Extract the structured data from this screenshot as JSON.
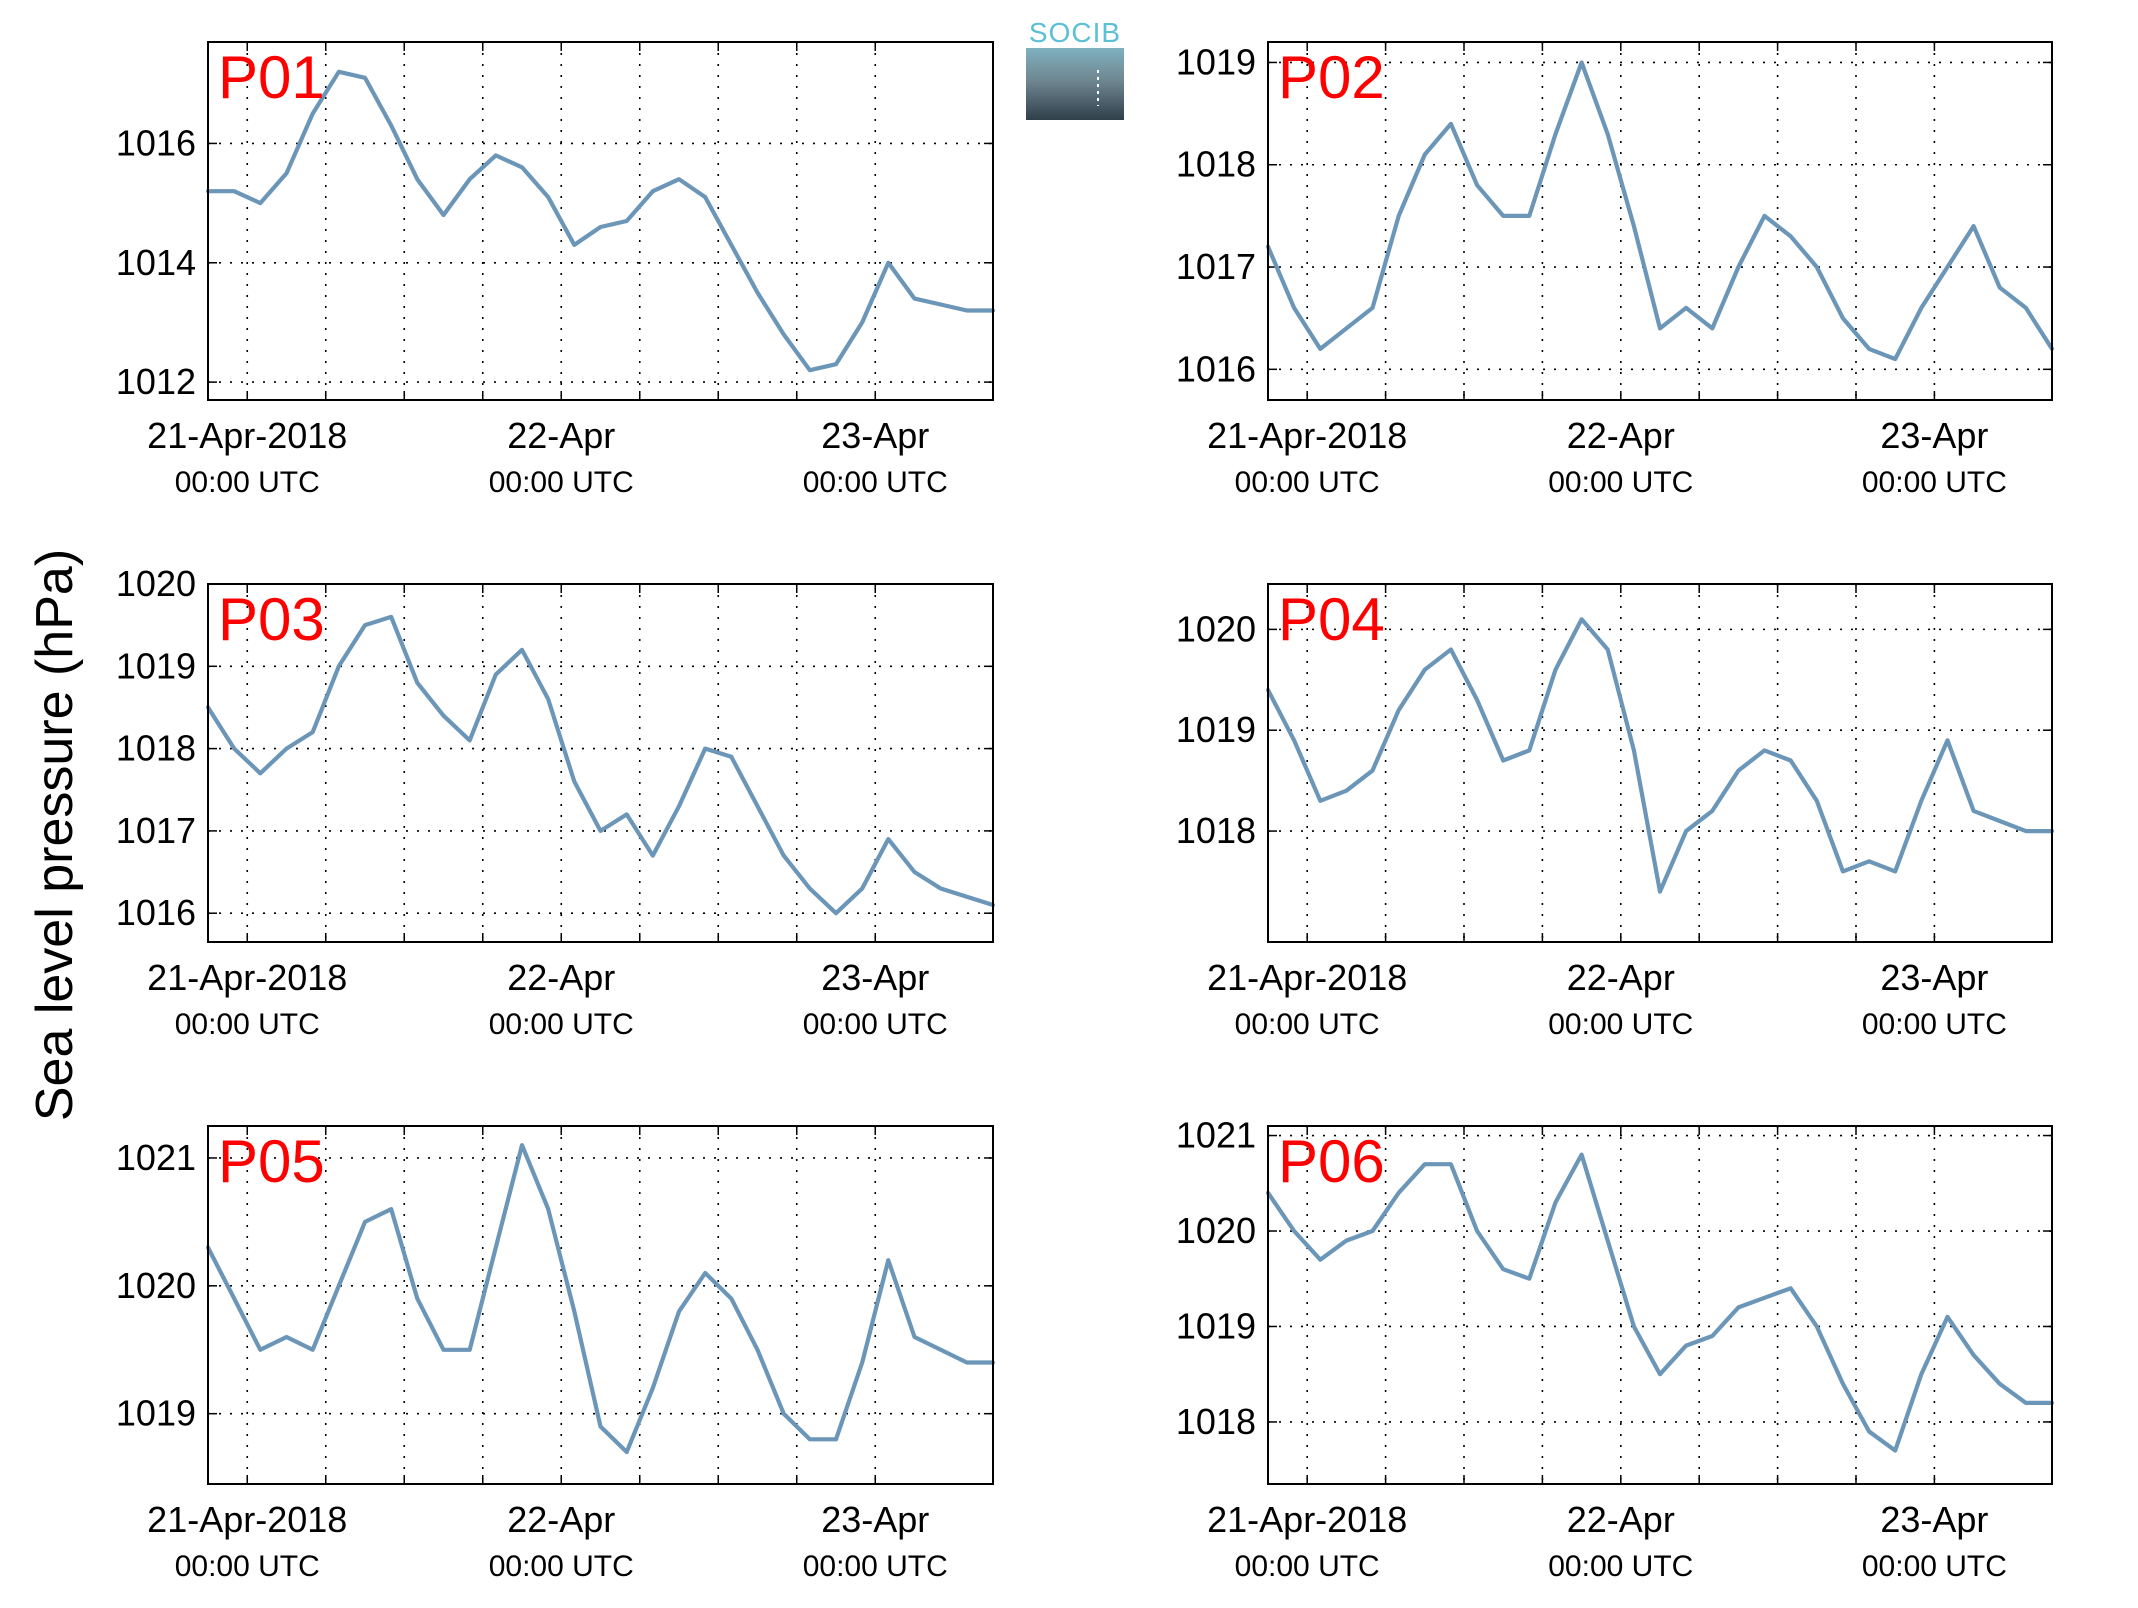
{
  "ylabel": "Sea level pressure (hPa)",
  "logo": {
    "text": "SOCIB"
  },
  "colors": {
    "line": "#6b96b8",
    "panel_label": "#ff0000",
    "grid": "#000000",
    "logo_top": "#5bbfd6",
    "logo_bottom": "#2f3f4a"
  },
  "x_ticks": [
    {
      "date": "21-Apr-2018",
      "time": "00:00 UTC"
    },
    {
      "date": "22-Apr",
      "time": "00:00 UTC"
    },
    {
      "date": "23-Apr",
      "time": "00:00 UTC"
    }
  ],
  "chart_data": [
    {
      "type": "line",
      "label": "P01",
      "xlim": [
        -3,
        57
      ],
      "ylim": [
        1011.7,
        1017.7
      ],
      "yticks": [
        "1012",
        "1014",
        "1016"
      ],
      "grid": true,
      "series": [
        {
          "x": [
            -3,
            -1,
            1,
            3,
            5,
            7,
            9,
            11,
            13,
            15,
            17,
            19,
            21,
            23,
            25,
            27,
            29,
            31,
            33,
            35,
            37,
            39,
            41,
            43,
            45,
            47,
            49,
            51,
            53,
            55,
            57
          ],
          "y": [
            1015.2,
            1015.2,
            1015.0,
            1015.5,
            1016.5,
            1017.2,
            1017.1,
            1016.3,
            1015.4,
            1014.8,
            1015.4,
            1015.8,
            1015.6,
            1015.1,
            1014.3,
            1014.6,
            1014.7,
            1015.2,
            1015.4,
            1015.1,
            1014.3,
            1013.5,
            1012.8,
            1012.2,
            1012.3,
            1013.0,
            1014.0,
            1013.4,
            1013.3,
            1013.2,
            1013.2
          ]
        }
      ]
    },
    {
      "type": "line",
      "label": "P02",
      "xlim": [
        -3,
        57
      ],
      "ylim": [
        1015.7,
        1019.2
      ],
      "yticks": [
        "1016",
        "1017",
        "1018",
        "1019"
      ],
      "grid": true,
      "series": [
        {
          "x": [
            -3,
            -1,
            1,
            3,
            5,
            7,
            9,
            11,
            13,
            15,
            17,
            19,
            21,
            23,
            25,
            27,
            29,
            31,
            33,
            35,
            37,
            39,
            41,
            43,
            45,
            47,
            49,
            51,
            53,
            55,
            57
          ],
          "y": [
            1017.2,
            1016.6,
            1016.2,
            1016.4,
            1016.6,
            1017.5,
            1018.1,
            1018.4,
            1017.8,
            1017.5,
            1017.5,
            1018.3,
            1019.0,
            1018.3,
            1017.4,
            1016.4,
            1016.6,
            1016.4,
            1017.0,
            1017.5,
            1017.3,
            1017.0,
            1016.5,
            1016.2,
            1016.1,
            1016.6,
            1017.0,
            1017.4,
            1016.8,
            1016.6,
            1016.2
          ]
        }
      ]
    },
    {
      "type": "line",
      "label": "P03",
      "xlim": [
        -3,
        57
      ],
      "ylim": [
        1015.65,
        1020.0
      ],
      "yticks": [
        "1016",
        "1017",
        "1018",
        "1019",
        "1020"
      ],
      "grid": true,
      "series": [
        {
          "x": [
            -3,
            -1,
            1,
            3,
            5,
            7,
            9,
            11,
            13,
            15,
            17,
            19,
            21,
            23,
            25,
            27,
            29,
            31,
            33,
            35,
            37,
            39,
            41,
            43,
            45,
            47,
            49,
            51,
            53,
            55,
            57
          ],
          "y": [
            1018.5,
            1018.0,
            1017.7,
            1018.0,
            1018.2,
            1019.0,
            1019.5,
            1019.6,
            1018.8,
            1018.4,
            1018.1,
            1018.9,
            1019.2,
            1018.6,
            1017.6,
            1017.0,
            1017.2,
            1016.7,
            1017.3,
            1018.0,
            1017.9,
            1017.3,
            1016.7,
            1016.3,
            1016.0,
            1016.3,
            1016.9,
            1016.5,
            1016.3,
            1016.2,
            1016.1
          ]
        }
      ]
    },
    {
      "type": "line",
      "label": "P04",
      "xlim": [
        -3,
        57
      ],
      "ylim": [
        1016.9,
        1020.45
      ],
      "yticks": [
        "1018",
        "1019",
        "1020"
      ],
      "grid": true,
      "series": [
        {
          "x": [
            -3,
            -1,
            1,
            3,
            5,
            7,
            9,
            11,
            13,
            15,
            17,
            19,
            21,
            23,
            25,
            27,
            29,
            31,
            33,
            35,
            37,
            39,
            41,
            43,
            45,
            47,
            49,
            51,
            53,
            55,
            57
          ],
          "y": [
            1019.4,
            1018.9,
            1018.3,
            1018.4,
            1018.6,
            1019.2,
            1019.6,
            1019.8,
            1019.3,
            1018.7,
            1018.8,
            1019.6,
            1020.1,
            1019.8,
            1018.8,
            1017.4,
            1018.0,
            1018.2,
            1018.6,
            1018.8,
            1018.7,
            1018.3,
            1017.6,
            1017.7,
            1017.6,
            1018.3,
            1018.9,
            1018.2,
            1018.1,
            1018.0,
            1018.0
          ]
        }
      ]
    },
    {
      "type": "line",
      "label": "P05",
      "xlim": [
        -3,
        57
      ],
      "ylim": [
        1018.45,
        1021.25
      ],
      "yticks": [
        "1019",
        "1020",
        "1021"
      ],
      "grid": true,
      "series": [
        {
          "x": [
            -3,
            -1,
            1,
            3,
            5,
            7,
            9,
            11,
            13,
            15,
            17,
            19,
            21,
            23,
            25,
            27,
            29,
            31,
            33,
            35,
            37,
            39,
            41,
            43,
            45,
            47,
            49,
            51,
            53,
            55,
            57
          ],
          "y": [
            1020.3,
            1019.9,
            1019.5,
            1019.6,
            1019.5,
            1020.0,
            1020.5,
            1020.6,
            1019.9,
            1019.5,
            1019.5,
            1020.3,
            1021.1,
            1020.6,
            1019.8,
            1018.9,
            1018.7,
            1019.2,
            1019.8,
            1020.1,
            1019.9,
            1019.5,
            1019.0,
            1018.8,
            1018.8,
            1019.4,
            1020.2,
            1019.6,
            1019.5,
            1019.4,
            1019.4
          ]
        }
      ]
    },
    {
      "type": "line",
      "label": "P06",
      "xlim": [
        -3,
        57
      ],
      "ylim": [
        1017.35,
        1021.1
      ],
      "yticks": [
        "1018",
        "1019",
        "1020",
        "1021"
      ],
      "grid": true,
      "series": [
        {
          "x": [
            -3,
            -1,
            1,
            3,
            5,
            7,
            9,
            11,
            13,
            15,
            17,
            19,
            21,
            23,
            25,
            27,
            29,
            31,
            33,
            35,
            37,
            39,
            41,
            43,
            45,
            47,
            49,
            51,
            53,
            55,
            57
          ],
          "y": [
            1020.4,
            1020.0,
            1019.7,
            1019.9,
            1020.0,
            1020.4,
            1020.7,
            1020.7,
            1020.0,
            1019.6,
            1019.5,
            1020.3,
            1020.8,
            1019.9,
            1019.0,
            1018.5,
            1018.8,
            1018.9,
            1019.2,
            1019.3,
            1019.4,
            1019.0,
            1018.4,
            1017.9,
            1017.7,
            1018.5,
            1019.1,
            1018.7,
            1018.4,
            1018.2,
            1018.2
          ]
        }
      ]
    }
  ]
}
